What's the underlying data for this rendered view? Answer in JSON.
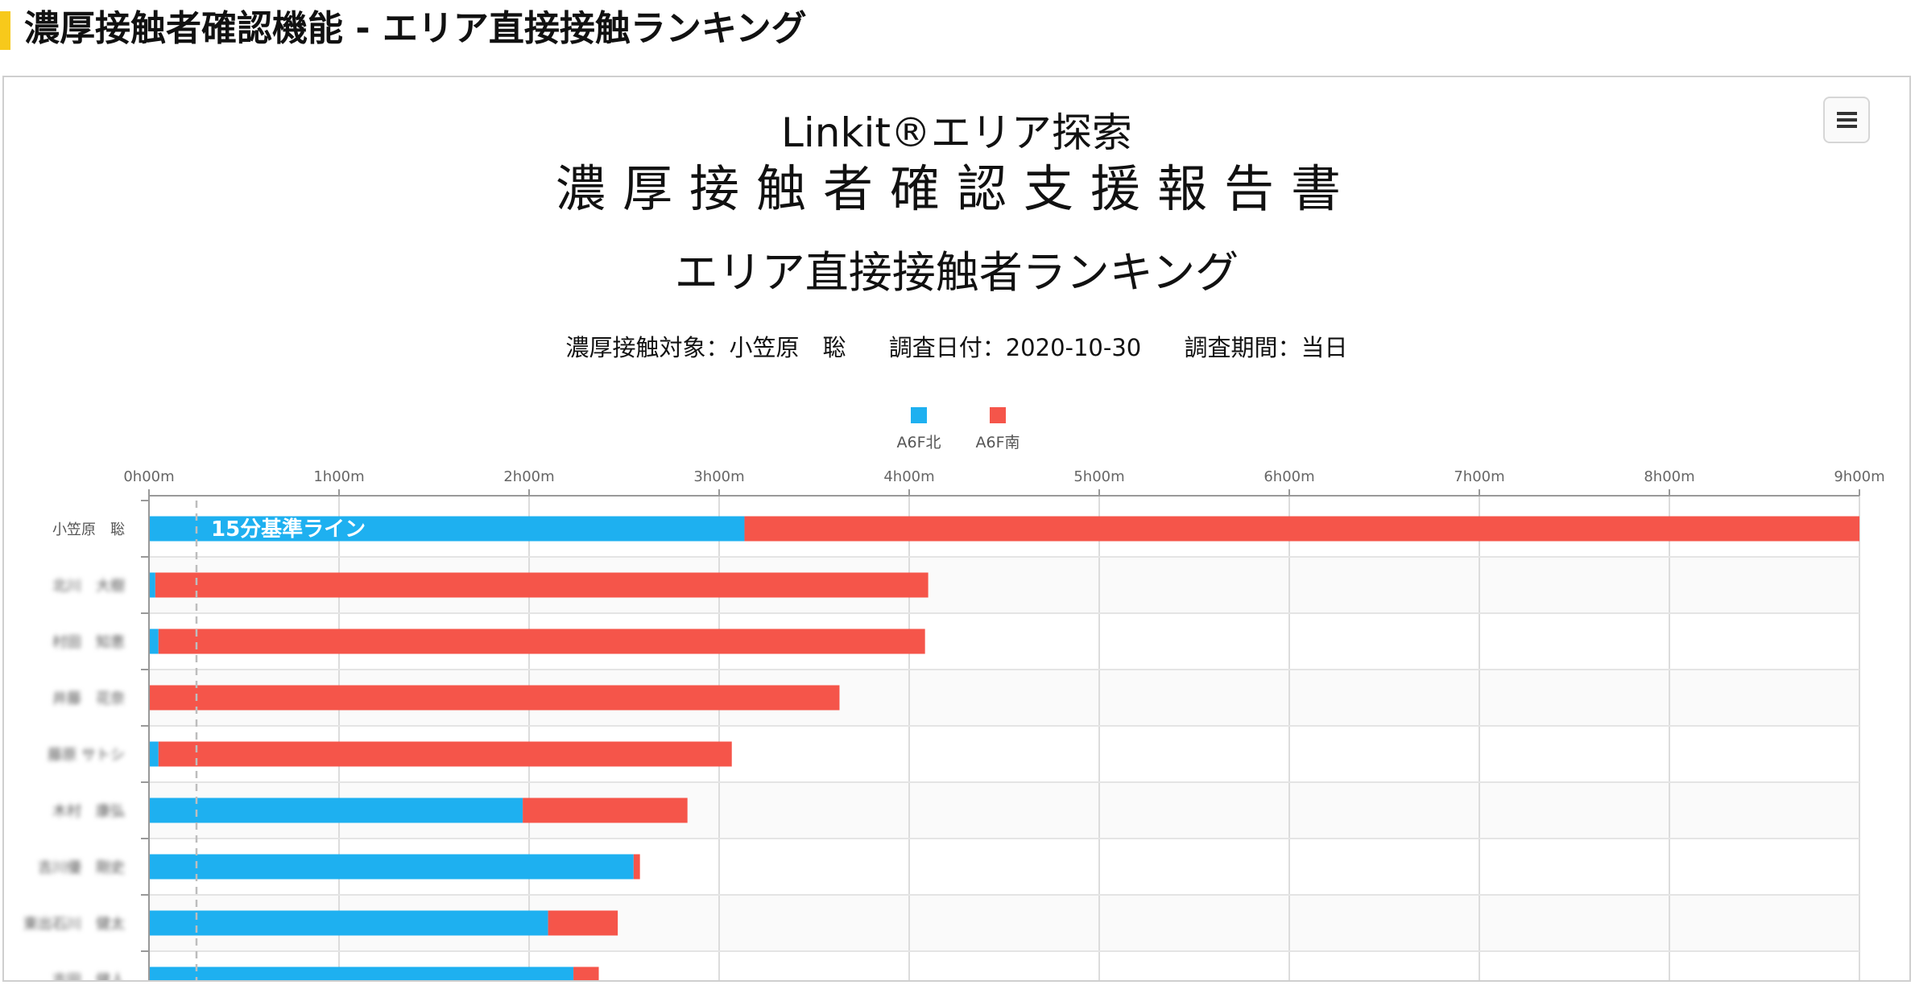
{
  "page": {
    "heading": "濃厚接触者確認機能 - エリア直接接触ランキング",
    "accent_color": "#F7C91B"
  },
  "report": {
    "brand_line": "Linkit®エリア探索",
    "report_title": "濃厚接触者確認支援報告書",
    "subtitle": {
      "target": "濃厚接触対象：小笠原　聡",
      "date": "調査日付：2020-10-30",
      "period": "調査期間：当日"
    },
    "menu_icon": "hamburger-menu-icon"
  },
  "chart_data": {
    "type": "bar",
    "orientation": "horizontal",
    "stacked": true,
    "title": "エリア直接接触者ランキング",
    "categories": [
      "小笠原　聡",
      "北川　大樹",
      "村田　知恵",
      "井藤　花奈",
      "藤原 サトシ",
      "木村　康弘",
      "吉川優　剛史",
      "東出石川　健太",
      "吉田　健人"
    ],
    "blurred_category_indices": [
      1,
      2,
      3,
      4,
      5,
      6,
      7,
      8
    ],
    "x_unit": "minutes",
    "xlim": [
      0,
      540
    ],
    "x_ticks": [
      0,
      60,
      120,
      180,
      240,
      300,
      360,
      420,
      480,
      540
    ],
    "x_tick_labels": [
      "0h00m",
      "1h00m",
      "2h00m",
      "3h00m",
      "4h00m",
      "5h00m",
      "6h00m",
      "7h00m",
      "8h00m",
      "9h00m"
    ],
    "series": [
      {
        "name": "A6F北",
        "color": "#1EB0F0",
        "values": [
          188,
          2,
          3,
          0,
          3,
          118,
          153,
          126,
          134
        ]
      },
      {
        "name": "A6F南",
        "color": "#F5554A",
        "values": [
          352,
          244,
          242,
          218,
          181,
          52,
          2,
          22,
          8
        ]
      }
    ],
    "legend": "top-center",
    "grid": "vertical",
    "reference_line": {
      "x": 15,
      "label": "15分基準ライン",
      "style": "dashed"
    }
  }
}
